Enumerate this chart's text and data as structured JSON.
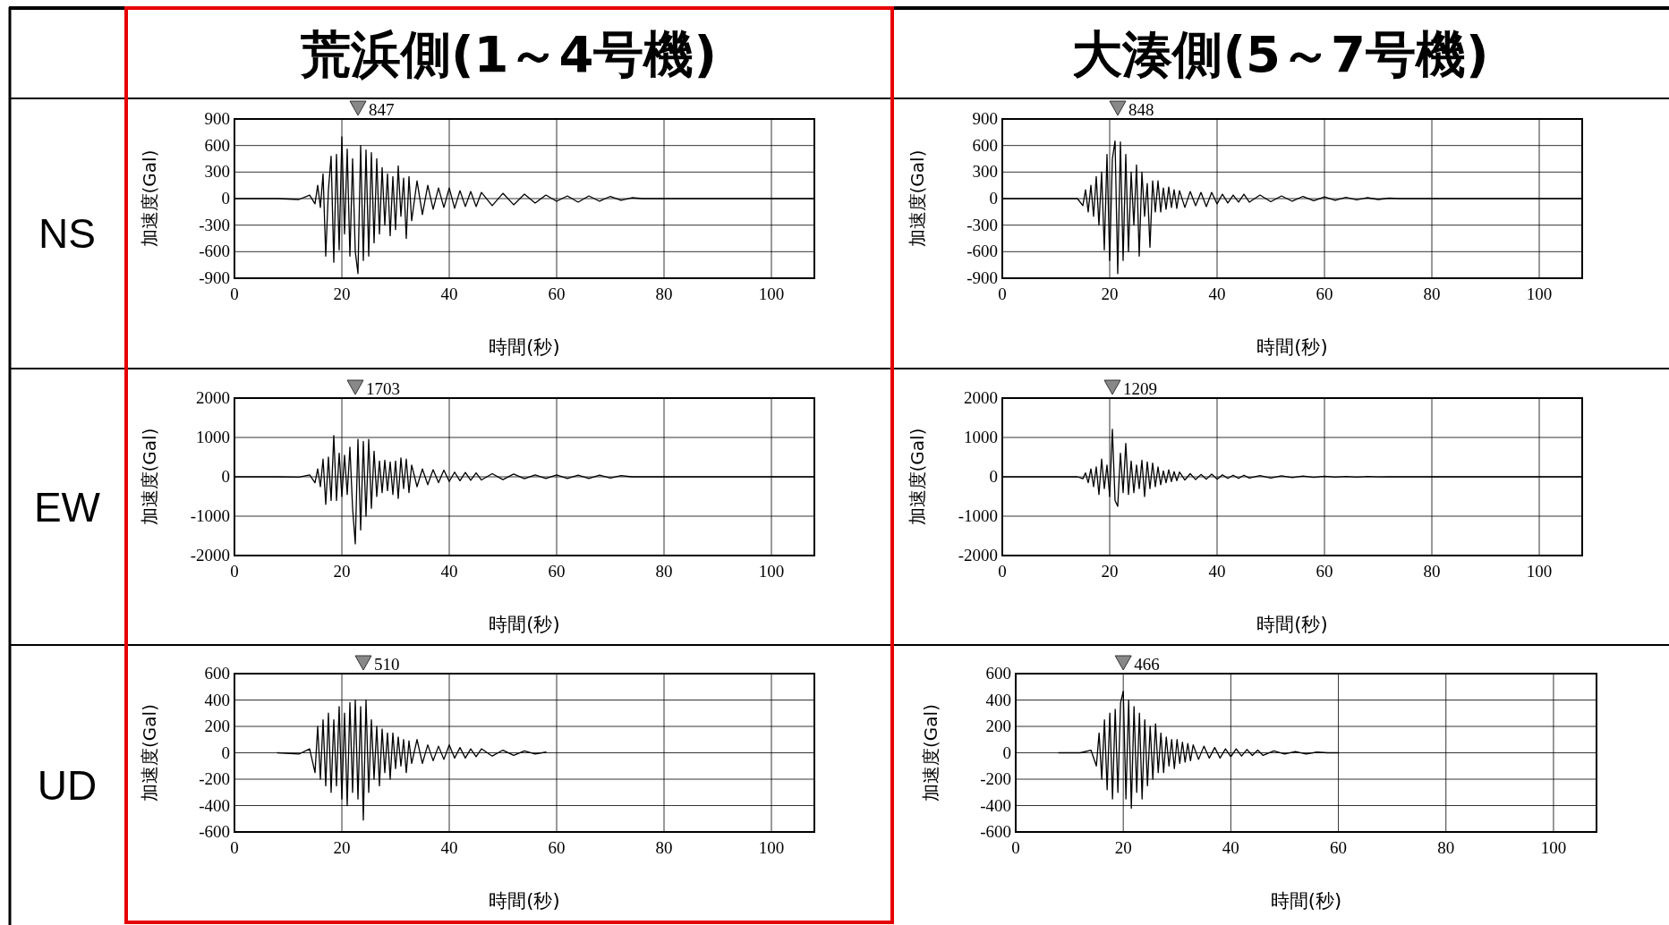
{
  "chart_data": [
    {
      "type": "line",
      "title": "荒浜側(1～4号機)",
      "subtitle": "NS",
      "xlabel": "時間(秒)",
      "ylabel": "加速度(Gal)",
      "color": "#000000",
      "grid": true,
      "xlim": [
        0,
        108
      ],
      "ylim": [
        -900,
        900
      ],
      "xticks": [
        0,
        20,
        40,
        60,
        80,
        100
      ],
      "yticks": [
        -900,
        -600,
        -300,
        0,
        300,
        600,
        900
      ],
      "annotations": [
        "847"
      ],
      "x": [
        0,
        8,
        12,
        14,
        15,
        15.5,
        16,
        16.5,
        17,
        17.5,
        18,
        18.5,
        19,
        19.5,
        20,
        20.5,
        21,
        21.5,
        22,
        22.5,
        23,
        23.5,
        24,
        24.5,
        25,
        25.5,
        26,
        26.5,
        27,
        27.5,
        28,
        28.5,
        29,
        29.5,
        30,
        30.5,
        31,
        31.5,
        32,
        32.5,
        33,
        34,
        35,
        36,
        37,
        38,
        39,
        40,
        41,
        42,
        43,
        44,
        45,
        46,
        48,
        50,
        52,
        54,
        56,
        58,
        60,
        62,
        64,
        66,
        68,
        70,
        72,
        74,
        76,
        80,
        108
      ],
      "values": [
        0,
        0,
        -10,
        40,
        -60,
        150,
        -100,
        280,
        -650,
        100,
        480,
        -720,
        500,
        -580,
        700,
        -400,
        560,
        -650,
        450,
        -600,
        -847,
        600,
        -700,
        550,
        -650,
        520,
        -500,
        450,
        -400,
        350,
        -300,
        280,
        -420,
        250,
        -350,
        370,
        -200,
        230,
        -450,
        250,
        -250,
        200,
        -180,
        150,
        -120,
        120,
        -100,
        120,
        -110,
        90,
        -90,
        80,
        -90,
        70,
        -80,
        60,
        -70,
        50,
        -50,
        40,
        -30,
        30,
        -40,
        30,
        -30,
        25,
        -20,
        10,
        0,
        0,
        0
      ]
    },
    {
      "type": "line",
      "title": "大湊側(5～7号機)",
      "xlabel": "時間(秒)",
      "ylabel": "加速度(Gal)",
      "color": "#000000",
      "grid": true,
      "xlim": [
        0,
        108
      ],
      "ylim": [
        -900,
        900
      ],
      "xticks": [
        0,
        20,
        40,
        60,
        80,
        100
      ],
      "yticks": [
        -900,
        -600,
        -300,
        0,
        300,
        600,
        900
      ],
      "annotations": [
        "848"
      ],
      "x": [
        0,
        8,
        12,
        14,
        15,
        15.5,
        16,
        16.5,
        17,
        17.5,
        18,
        18.5,
        19,
        19.5,
        20,
        20.5,
        21,
        21.5,
        22,
        22.5,
        23,
        23.5,
        24,
        24.5,
        25,
        25.5,
        26,
        26.5,
        27,
        27.5,
        28,
        28.5,
        29,
        29.5,
        30,
        30.5,
        31,
        31.5,
        32,
        32.5,
        33,
        34,
        35,
        36,
        37,
        38,
        39,
        40,
        41,
        42,
        43,
        44,
        45,
        46,
        48,
        50,
        52,
        54,
        56,
        58,
        60,
        62,
        64,
        66,
        68,
        70,
        72,
        74,
        76,
        80,
        108
      ],
      "values": [
        0,
        0,
        0,
        0,
        -80,
        100,
        -150,
        150,
        -200,
        250,
        -300,
        300,
        -580,
        500,
        -700,
        450,
        650,
        -848,
        640,
        -700,
        500,
        -600,
        300,
        -300,
        380,
        -650,
        300,
        -200,
        170,
        -550,
        200,
        -150,
        200,
        -150,
        120,
        -120,
        130,
        -100,
        100,
        -110,
        90,
        -100,
        80,
        -80,
        70,
        -90,
        70,
        -60,
        50,
        -50,
        40,
        -40,
        50,
        -40,
        40,
        -35,
        30,
        -30,
        25,
        -25,
        20,
        -20,
        15,
        -15,
        10,
        -10,
        5,
        0,
        0,
        0,
        0
      ]
    },
    {
      "type": "line",
      "subtitle": "EW",
      "xlabel": "時間(秒)",
      "ylabel": "加速度(Gal)",
      "color": "#000000",
      "grid": true,
      "xlim": [
        0,
        108
      ],
      "ylim": [
        -2000,
        2000
      ],
      "xticks": [
        0,
        20,
        40,
        60,
        80,
        100
      ],
      "yticks": [
        -2000,
        -1000,
        0,
        1000,
        2000
      ],
      "annotations": [
        "1703"
      ],
      "x": [
        0,
        8,
        12,
        14,
        15,
        15.5,
        16,
        16.5,
        17,
        17.5,
        18,
        18.5,
        19,
        19.5,
        20,
        20.5,
        21,
        21.5,
        22,
        22.5,
        23,
        23.5,
        24,
        24.5,
        25,
        25.5,
        26,
        26.5,
        27,
        27.5,
        28,
        28.5,
        29,
        29.5,
        30,
        30.5,
        31,
        31.5,
        32,
        32.5,
        33,
        34,
        35,
        36,
        37,
        38,
        39,
        40,
        41,
        42,
        43,
        44,
        45,
        46,
        48,
        50,
        52,
        54,
        56,
        58,
        60,
        62,
        64,
        66,
        68,
        70,
        72,
        74,
        76,
        80,
        108
      ],
      "values": [
        0,
        0,
        -10,
        50,
        -150,
        200,
        -250,
        450,
        -700,
        500,
        -600,
        1050,
        -600,
        600,
        -500,
        550,
        -450,
        750,
        -800,
        -1703,
        950,
        -1350,
        900,
        -1000,
        950,
        -800,
        650,
        -500,
        400,
        -400,
        420,
        -350,
        380,
        -450,
        400,
        -550,
        480,
        -300,
        450,
        -400,
        300,
        -250,
        200,
        -200,
        180,
        -150,
        170,
        -120,
        120,
        -100,
        110,
        -90,
        100,
        -80,
        80,
        -70,
        70,
        -50,
        50,
        -40,
        50,
        -40,
        40,
        -45,
        40,
        -30,
        30,
        0,
        0,
        0,
        0
      ]
    },
    {
      "type": "line",
      "xlabel": "時間(秒)",
      "ylabel": "加速度(Gal)",
      "color": "#000000",
      "grid": true,
      "xlim": [
        0,
        108
      ],
      "ylim": [
        -2000,
        2000
      ],
      "xticks": [
        0,
        20,
        40,
        60,
        80,
        100
      ],
      "yticks": [
        -2000,
        -1000,
        0,
        1000,
        2000
      ],
      "annotations": [
        "1209"
      ],
      "x": [
        0,
        8,
        12,
        14,
        15,
        15.5,
        16,
        16.5,
        17,
        17.5,
        18,
        18.5,
        19,
        19.5,
        20,
        20.5,
        21,
        21.5,
        22,
        22.5,
        23,
        23.5,
        24,
        24.5,
        25,
        25.5,
        26,
        26.5,
        27,
        27.5,
        28,
        28.5,
        29,
        29.5,
        30,
        30.5,
        31,
        31.5,
        32,
        32.5,
        33,
        34,
        35,
        36,
        37,
        38,
        39,
        40,
        41,
        42,
        43,
        44,
        45,
        46,
        48,
        50,
        52,
        54,
        56,
        58,
        60,
        62,
        64,
        66,
        68,
        70,
        72,
        74,
        76,
        80,
        108
      ],
      "values": [
        0,
        0,
        0,
        0,
        -50,
        100,
        -150,
        200,
        -250,
        250,
        -450,
        450,
        -300,
        300,
        -500,
        1209,
        -600,
        -750,
        600,
        -400,
        850,
        -450,
        400,
        -400,
        300,
        -300,
        420,
        -500,
        380,
        -300,
        350,
        -250,
        250,
        -200,
        150,
        -150,
        180,
        -120,
        130,
        -100,
        120,
        -80,
        80,
        -70,
        60,
        -60,
        70,
        -60,
        50,
        -40,
        40,
        -40,
        40,
        -30,
        30,
        -30,
        25,
        -20,
        20,
        -15,
        15,
        -10,
        10,
        -10,
        8,
        -5,
        0,
        0,
        0,
        0,
        0
      ]
    },
    {
      "type": "line",
      "subtitle": "UD",
      "xlabel": "時間(秒)",
      "ylabel": "加速度(Gal)",
      "color": "#000000",
      "grid": true,
      "xlim": [
        0,
        108
      ],
      "ylim": [
        -600,
        600
      ],
      "xticks": [
        0,
        20,
        40,
        60,
        80,
        100
      ],
      "yticks": [
        -600,
        -400,
        -200,
        0,
        200,
        400,
        600
      ],
      "annotations": [
        "510"
      ],
      "x": [
        8,
        12,
        14,
        15,
        15.5,
        16,
        16.5,
        17,
        17.5,
        18,
        18.5,
        19,
        19.5,
        20,
        20.5,
        21,
        21.5,
        22,
        22.5,
        23,
        23.5,
        24,
        24.5,
        25,
        25.5,
        26,
        26.5,
        27,
        27.5,
        28,
        28.5,
        29,
        29.5,
        30,
        30.5,
        31,
        31.5,
        32,
        32.5,
        33,
        34,
        35,
        36,
        37,
        38,
        39,
        40,
        41,
        42,
        43,
        44,
        45,
        46,
        48,
        50,
        52,
        54,
        56,
        58
      ],
      "values": [
        0,
        -10,
        30,
        -150,
        200,
        -200,
        250,
        -250,
        300,
        -300,
        250,
        -250,
        350,
        -350,
        300,
        -400,
        380,
        -300,
        400,
        -350,
        350,
        -510,
        400,
        -300,
        250,
        -200,
        200,
        -250,
        180,
        -150,
        150,
        -200,
        150,
        -120,
        120,
        -100,
        100,
        -150,
        90,
        -80,
        100,
        -80,
        60,
        -60,
        50,
        -50,
        60,
        -40,
        40,
        -40,
        30,
        -30,
        30,
        -25,
        20,
        -20,
        15,
        -10,
        5
      ]
    },
    {
      "type": "line",
      "xlabel": "時間(秒)",
      "ylabel": "加速度(Gal)",
      "color": "#000000",
      "grid": true,
      "xlim": [
        0,
        108
      ],
      "ylim": [
        -600,
        600
      ],
      "xticks": [
        0,
        20,
        40,
        60,
        80,
        100
      ],
      "yticks": [
        -600,
        -400,
        -200,
        0,
        200,
        400,
        600
      ],
      "annotations": [
        "466"
      ],
      "x": [
        8,
        12,
        14,
        15,
        15.5,
        16,
        16.5,
        17,
        17.5,
        18,
        18.5,
        19,
        19.5,
        20,
        20.5,
        21,
        21.5,
        22,
        22.5,
        23,
        23.5,
        24,
        24.5,
        25,
        25.5,
        26,
        26.5,
        27,
        27.5,
        28,
        28.5,
        29,
        29.5,
        30,
        30.5,
        31,
        31.5,
        32,
        32.5,
        33,
        34,
        35,
        36,
        37,
        38,
        39,
        40,
        41,
        42,
        43,
        44,
        45,
        46,
        48,
        50,
        52,
        54,
        56,
        58,
        60
      ],
      "values": [
        0,
        0,
        20,
        -100,
        150,
        -200,
        250,
        -280,
        300,
        -350,
        330,
        -300,
        380,
        466,
        -350,
        400,
        -420,
        350,
        -300,
        300,
        -350,
        250,
        -250,
        200,
        -200,
        220,
        -150,
        150,
        -150,
        120,
        -100,
        100,
        -120,
        100,
        -80,
        80,
        -70,
        70,
        -60,
        60,
        -50,
        50,
        -40,
        40,
        -40,
        30,
        -30,
        30,
        -25,
        25,
        -20,
        20,
        -20,
        15,
        -10,
        10,
        -10,
        5,
        0,
        0
      ]
    }
  ]
}
